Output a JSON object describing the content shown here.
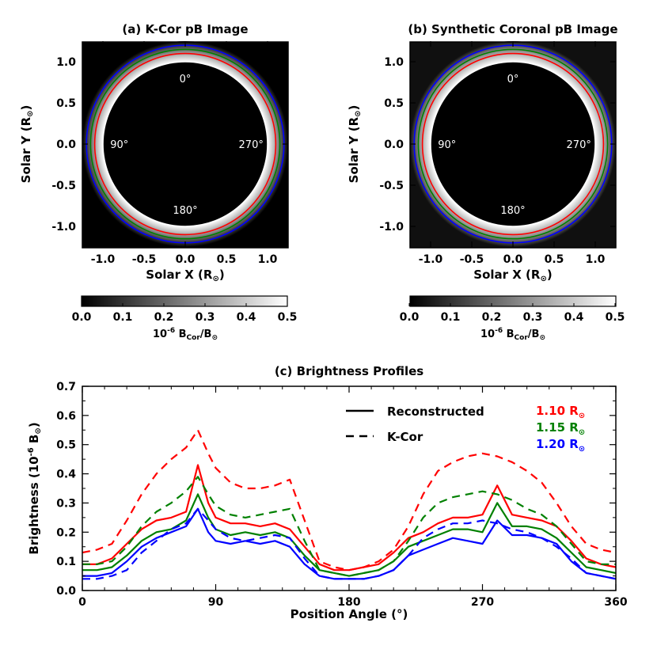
{
  "chart_data": [
    {
      "type": "heatmap",
      "panel": "a",
      "title": "(a) K-Cor pB Image",
      "xlabel": "Solar X (R",
      "ylabel": "Solar Y (R",
      "xlim": [
        -1.25,
        1.25
      ],
      "ylim": [
        -1.25,
        1.25
      ],
      "xticks": [
        "-1.0",
        "-0.5",
        "0.0",
        "0.5",
        "1.0"
      ],
      "yticks": [
        "-1.0",
        "-0.5",
        "0.0",
        "0.5",
        "1.0"
      ],
      "xtick_values": [
        -1.0,
        -0.5,
        0.0,
        0.5,
        1.0
      ],
      "ytick_values": [
        -1.0,
        -0.5,
        0.0,
        0.5,
        1.0
      ],
      "angle_labels": [
        {
          "text": "0°",
          "angle": 0
        },
        {
          "text": "90°",
          "angle": 90
        },
        {
          "text": "180°",
          "angle": 180
        },
        {
          "text": "270°",
          "angle": 270
        }
      ],
      "occulter_radius": 1.0,
      "circles": [
        {
          "radius": 1.0,
          "color": "#ffffff"
        },
        {
          "radius": 1.1,
          "color": "#ff0000"
        },
        {
          "radius": 1.15,
          "color": "#008000"
        },
        {
          "radius": 1.2,
          "color": "#0000ff"
        }
      ],
      "colorbar": {
        "ticks": [
          "0.0",
          "0.1",
          "0.2",
          "0.3",
          "0.4",
          "0.5"
        ],
        "tick_values": [
          0.0,
          0.1,
          0.2,
          0.3,
          0.4,
          0.5
        ],
        "range": [
          0.0,
          0.5
        ],
        "label_prefix": "10",
        "label_exp": "-6",
        "label_b1": " B",
        "label_sub1": "Cor",
        "label_mid": "/B"
      }
    },
    {
      "type": "heatmap",
      "panel": "b",
      "title": "(b) Synthetic Coronal pB Image",
      "xlabel": "Solar X (R",
      "ylabel": "Solar Y (R",
      "xlim": [
        -1.25,
        1.25
      ],
      "ylim": [
        -1.25,
        1.25
      ],
      "xticks": [
        "-1.0",
        "-0.5",
        "0.0",
        "0.5",
        "1.0"
      ],
      "yticks": [
        "-1.0",
        "-0.5",
        "0.0",
        "0.5",
        "1.0"
      ],
      "xtick_values": [
        -1.0,
        -0.5,
        0.0,
        0.5,
        1.0
      ],
      "ytick_values": [
        -1.0,
        -0.5,
        0.0,
        0.5,
        1.0
      ],
      "angle_labels": [
        {
          "text": "0°",
          "angle": 0
        },
        {
          "text": "90°",
          "angle": 90
        },
        {
          "text": "180°",
          "angle": 180
        },
        {
          "text": "270°",
          "angle": 270
        }
      ],
      "occulter_radius": 1.0,
      "circles": [
        {
          "radius": 1.0,
          "color": "#ffffff"
        },
        {
          "radius": 1.1,
          "color": "#ff0000"
        },
        {
          "radius": 1.15,
          "color": "#008000"
        },
        {
          "radius": 1.2,
          "color": "#0000ff"
        }
      ],
      "colorbar": {
        "ticks": [
          "0.0",
          "0.1",
          "0.2",
          "0.3",
          "0.4",
          "0.5"
        ],
        "tick_values": [
          0.0,
          0.1,
          0.2,
          0.3,
          0.4,
          0.5
        ],
        "range": [
          0.0,
          0.5
        ],
        "label_prefix": "10",
        "label_exp": "-6",
        "label_b1": " B",
        "label_sub1": "Cor",
        "label_mid": "/B"
      }
    },
    {
      "type": "line",
      "panel": "c",
      "title": "(c) Brightness Profiles",
      "xlabel": "Position Angle (°)",
      "ylabel_prefix": "Brightness (10",
      "ylabel_exp": "-6",
      "ylabel_suffix": " B",
      "xlim": [
        0,
        360
      ],
      "ylim": [
        0,
        0.7
      ],
      "xticks": [
        "0",
        "90",
        "180",
        "270",
        "360"
      ],
      "xtick_values": [
        0,
        90,
        180,
        270,
        360
      ],
      "yticks": [
        "0.0",
        "0.1",
        "0.2",
        "0.3",
        "0.4",
        "0.5",
        "0.6",
        "0.7"
      ],
      "ytick_values": [
        0.0,
        0.1,
        0.2,
        0.3,
        0.4,
        0.5,
        0.6,
        0.7
      ],
      "x": [
        0,
        10,
        20,
        30,
        40,
        50,
        60,
        70,
        78,
        85,
        90,
        100,
        110,
        120,
        130,
        140,
        150,
        160,
        170,
        180,
        190,
        200,
        210,
        220,
        230,
        240,
        250,
        260,
        270,
        280,
        290,
        300,
        310,
        320,
        330,
        340,
        350,
        360
      ],
      "series": [
        {
          "name": "Reconstructed 1.10 R",
          "radius": "1.10",
          "color": "#ff0000",
          "style": "solid",
          "values": [
            0.09,
            0.09,
            0.11,
            0.16,
            0.21,
            0.24,
            0.25,
            0.27,
            0.43,
            0.3,
            0.25,
            0.23,
            0.23,
            0.22,
            0.23,
            0.21,
            0.15,
            0.09,
            0.07,
            0.07,
            0.08,
            0.09,
            0.13,
            0.18,
            0.2,
            0.23,
            0.25,
            0.25,
            0.26,
            0.36,
            0.26,
            0.25,
            0.24,
            0.22,
            0.17,
            0.11,
            0.09,
            0.08
          ]
        },
        {
          "name": "Reconstructed 1.15 R",
          "radius": "1.15",
          "color": "#008000",
          "style": "solid",
          "values": [
            0.07,
            0.07,
            0.08,
            0.12,
            0.17,
            0.2,
            0.21,
            0.24,
            0.33,
            0.25,
            0.21,
            0.19,
            0.2,
            0.19,
            0.2,
            0.18,
            0.12,
            0.07,
            0.06,
            0.05,
            0.06,
            0.07,
            0.1,
            0.15,
            0.17,
            0.19,
            0.21,
            0.21,
            0.2,
            0.3,
            0.22,
            0.22,
            0.21,
            0.18,
            0.13,
            0.08,
            0.07,
            0.06
          ]
        },
        {
          "name": "Reconstructed 1.20 R",
          "radius": "1.20",
          "color": "#0000ff",
          "style": "solid",
          "values": [
            0.05,
            0.05,
            0.06,
            0.1,
            0.15,
            0.18,
            0.2,
            0.22,
            0.28,
            0.2,
            0.17,
            0.16,
            0.17,
            0.16,
            0.17,
            0.15,
            0.09,
            0.05,
            0.04,
            0.04,
            0.04,
            0.05,
            0.07,
            0.12,
            0.14,
            0.16,
            0.18,
            0.17,
            0.16,
            0.24,
            0.19,
            0.19,
            0.18,
            0.16,
            0.1,
            0.06,
            0.05,
            0.04
          ]
        },
        {
          "name": "K-Cor 1.10 R",
          "radius": "1.10",
          "color": "#ff0000",
          "style": "dashed",
          "values": [
            0.13,
            0.14,
            0.16,
            0.24,
            0.33,
            0.4,
            0.45,
            0.49,
            0.55,
            0.47,
            0.42,
            0.37,
            0.35,
            0.35,
            0.36,
            0.38,
            0.24,
            0.1,
            0.08,
            0.07,
            0.08,
            0.1,
            0.14,
            0.22,
            0.33,
            0.41,
            0.44,
            0.46,
            0.47,
            0.46,
            0.44,
            0.41,
            0.37,
            0.3,
            0.22,
            0.16,
            0.14,
            0.13
          ]
        },
        {
          "name": "K-Cor 1.15 R",
          "radius": "1.15",
          "color": "#008000",
          "style": "dashed",
          "values": [
            0.09,
            0.09,
            0.1,
            0.15,
            0.22,
            0.27,
            0.3,
            0.34,
            0.39,
            0.33,
            0.29,
            0.26,
            0.25,
            0.26,
            0.27,
            0.28,
            0.17,
            0.07,
            0.06,
            0.05,
            0.06,
            0.07,
            0.1,
            0.17,
            0.25,
            0.3,
            0.32,
            0.33,
            0.34,
            0.33,
            0.31,
            0.28,
            0.26,
            0.22,
            0.16,
            0.1,
            0.09,
            0.09
          ]
        },
        {
          "name": "K-Cor 1.20 R",
          "radius": "1.20",
          "color": "#0000ff",
          "style": "dashed",
          "values": [
            0.04,
            0.04,
            0.05,
            0.07,
            0.13,
            0.17,
            0.21,
            0.23,
            0.28,
            0.24,
            0.21,
            0.18,
            0.17,
            0.18,
            0.19,
            0.18,
            0.11,
            0.05,
            0.04,
            0.04,
            0.04,
            0.05,
            0.07,
            0.12,
            0.18,
            0.21,
            0.23,
            0.23,
            0.24,
            0.23,
            0.21,
            0.2,
            0.18,
            0.15,
            0.11,
            0.06,
            0.05,
            0.04
          ]
        }
      ],
      "legend": {
        "reconstructed": "Reconstructed",
        "kcor": "K-Cor",
        "radii": [
          {
            "text": "1.10 R",
            "color": "#ff0000"
          },
          {
            "text": "1.15 R",
            "color": "#008000"
          },
          {
            "text": "1.20 R",
            "color": "#0000ff"
          }
        ]
      }
    }
  ]
}
